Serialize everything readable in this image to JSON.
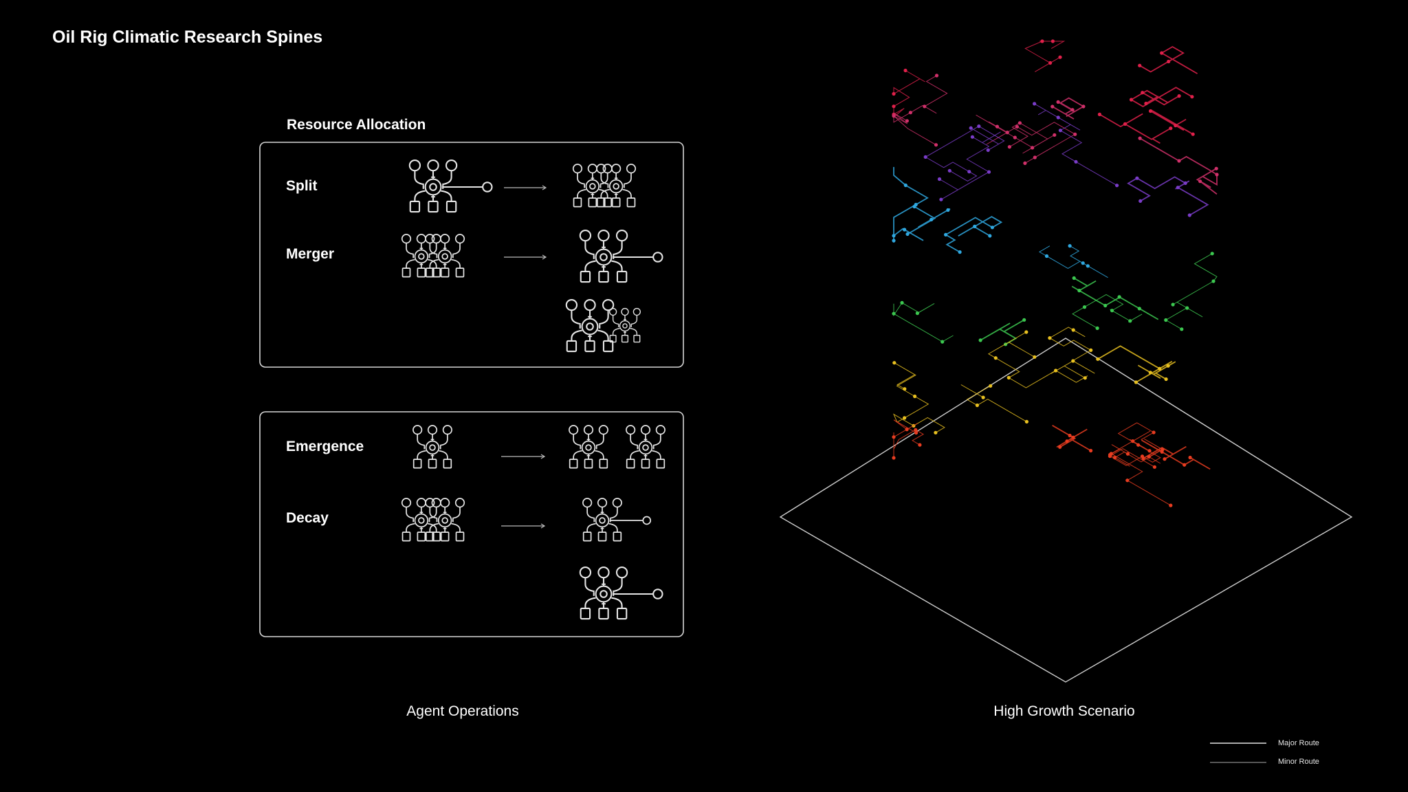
{
  "title": "Oil Rig Climatic Research Spines",
  "resource_section": {
    "title": "Resource Allocation",
    "operations": [
      {
        "label": "Split",
        "before_icon": "agent-node-with-link-icon",
        "after_icon": "twin-agent-cluster-icon"
      },
      {
        "label": "Merger",
        "before_icon": "twin-agent-cluster-icon",
        "after_icon": "agent-node-with-link-icon"
      }
    ]
  },
  "lifecycle_section": {
    "operations": [
      {
        "label": "Emergence",
        "before_icon": "small-agent-node-icon",
        "after_icon": "two-agent-nodes-icon"
      },
      {
        "label": "Decay",
        "before_icon": "twin-agent-cluster-icon",
        "after_icon": "small-agent-node-with-link-icon"
      }
    ]
  },
  "captions": {
    "left": "Agent Operations",
    "right": "High Growth Scenario"
  },
  "legend": {
    "major": "Major Route",
    "minor": "Minor Route"
  },
  "colors": {
    "background": "#000000",
    "line": "#e6e6e6",
    "network_layers": [
      "#e0204a",
      "#d0306a",
      "#7a3cc8",
      "#2fa8e0",
      "#3cc850",
      "#e8c020",
      "#e83c20"
    ]
  }
}
